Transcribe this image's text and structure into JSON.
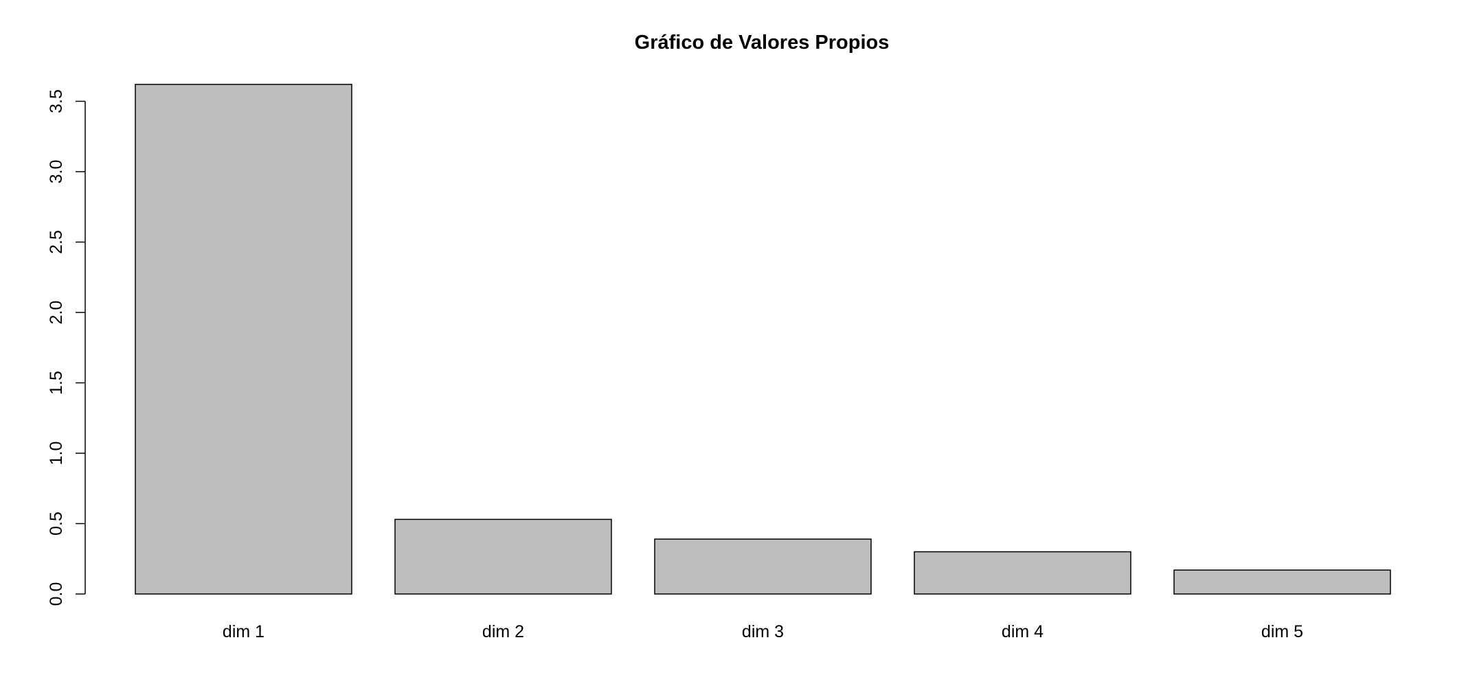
{
  "chart_data": {
    "type": "bar",
    "title": "Gráfico de Valores Propios",
    "xlabel": "",
    "ylabel": "",
    "categories": [
      "dim 1",
      "dim 2",
      "dim 3",
      "dim 4",
      "dim 5"
    ],
    "values": [
      3.62,
      0.53,
      0.39,
      0.3,
      0.17
    ],
    "ylim": [
      0,
      3.5
    ],
    "yticks": [
      "0.0",
      "0.5",
      "1.0",
      "1.5",
      "2.0",
      "2.5",
      "3.0",
      "3.5"
    ],
    "grid": false,
    "legend": "none",
    "bar_color": "#bebebe",
    "bar_border_color": "#000000"
  }
}
